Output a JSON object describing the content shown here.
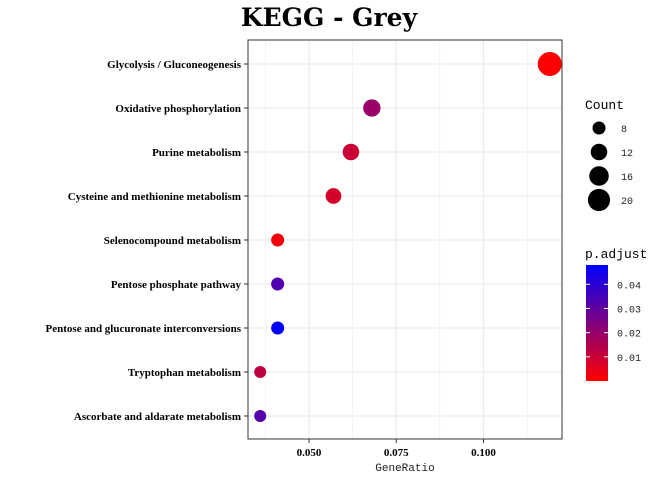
{
  "chart_data": {
    "type": "scatter",
    "title": "KEGG - Grey",
    "xlabel": "GeneRatio",
    "ylabel": "",
    "xlim": [
      0.0325,
      0.1225
    ],
    "x_ticks": [
      0.05,
      0.075,
      0.1
    ],
    "x_tick_labels": [
      "0.050",
      "0.075",
      "0.100"
    ],
    "grid": true,
    "legend_position": "right",
    "categories": [
      "Glycolysis / Gluconeogenesis",
      "Oxidative phosphorylation",
      "Purine metabolism",
      "Cysteine and methionine metabolism",
      "Selenocompound metabolism",
      "Pentose phosphate pathway",
      "Pentose and glucuronate interconversions",
      "Tryptophan metabolism",
      "Ascorbate and aldarate metabolism"
    ],
    "points": [
      {
        "term": "Glycolysis / Gluconeogenesis",
        "gene_ratio": 0.119,
        "count": 23,
        "p_adjust": 0.0
      },
      {
        "term": "Oxidative phosphorylation",
        "gene_ratio": 0.068,
        "count": 13,
        "p_adjust": 0.019
      },
      {
        "term": "Purine metabolism",
        "gene_ratio": 0.062,
        "count": 12,
        "p_adjust": 0.01
      },
      {
        "term": "Cysteine and methionine metabolism",
        "gene_ratio": 0.057,
        "count": 11,
        "p_adjust": 0.008
      },
      {
        "term": "Selenocompound metabolism",
        "gene_ratio": 0.041,
        "count": 8,
        "p_adjust": 0.002
      },
      {
        "term": "Pentose phosphate pathway",
        "gene_ratio": 0.041,
        "count": 8,
        "p_adjust": 0.033
      },
      {
        "term": "Pentose and glucuronate interconversions",
        "gene_ratio": 0.041,
        "count": 8,
        "p_adjust": 0.048
      },
      {
        "term": "Tryptophan metabolism",
        "gene_ratio": 0.036,
        "count": 7,
        "p_adjust": 0.012
      },
      {
        "term": "Ascorbate and aldarate metabolism",
        "gene_ratio": 0.036,
        "count": 7,
        "p_adjust": 0.032
      }
    ],
    "size_legend": {
      "title": "Count",
      "values": [
        8,
        12,
        16,
        20
      ],
      "labels": [
        "8",
        "12",
        "16",
        "20"
      ]
    },
    "color_legend": {
      "title": "p.adjust",
      "low_color": "#ff0000",
      "high_color": "#0000ff",
      "min": 0.0,
      "max": 0.048,
      "ticks": [
        0.01,
        0.02,
        0.03,
        0.04
      ],
      "tick_labels": [
        "0.01",
        "0.02",
        "0.03",
        "0.04"
      ]
    },
    "colors": {
      "panel_border": "#333333",
      "grid": "#ebebeb"
    }
  }
}
